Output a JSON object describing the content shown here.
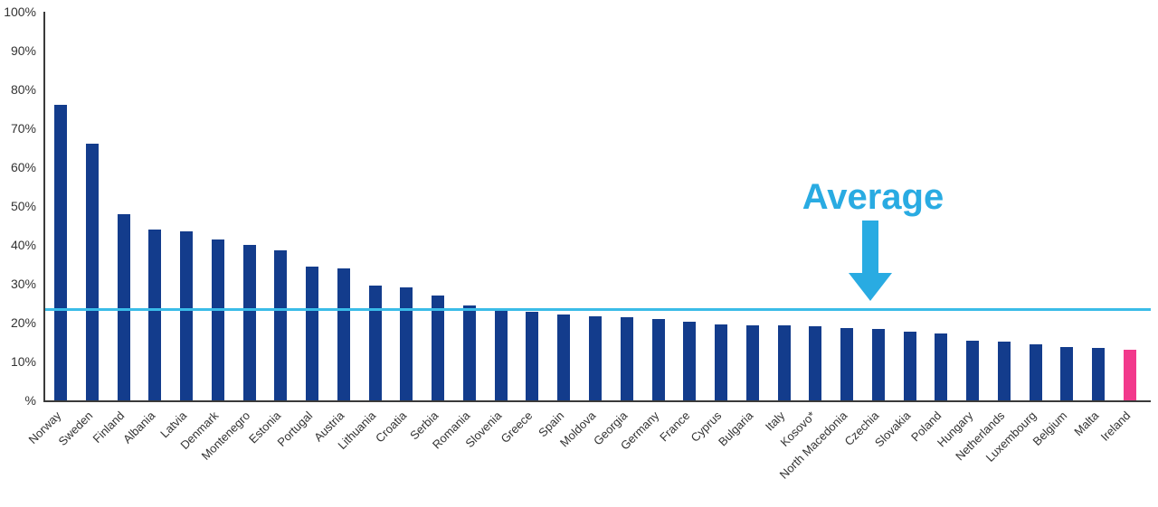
{
  "chart_data": {
    "type": "bar",
    "title": "",
    "xlabel": "",
    "ylabel": "",
    "ylim": [
      0,
      100
    ],
    "grid": false,
    "legend_position": "none",
    "y_tick_labels": [
      "100%",
      "90%",
      "80%",
      "70%",
      "60%",
      "50%",
      "40%",
      "30%",
      "20%",
      "10%",
      "%"
    ],
    "categories": [
      "Norway",
      "Sweden",
      "Finland",
      "Albania",
      "Latvia",
      "Denmark",
      "Montenegro",
      "Estonia",
      "Portugal",
      "Austria",
      "Lithuania",
      "Croatia",
      "Serbia",
      "Romania",
      "Slovenia",
      "Greece",
      "Spain",
      "Moldova",
      "Georgia",
      "Germany",
      "France",
      "Cyprus",
      "Bulgaria",
      "Italy",
      "Kosovo*",
      "North Macedonia",
      "Czechia",
      "Slovakia",
      "Poland",
      "Hungary",
      "Netherlands",
      "Luxembourg",
      "Belgium",
      "Malta",
      "Ireland"
    ],
    "values": [
      76,
      66,
      48,
      44,
      43.5,
      41.5,
      40,
      38.5,
      34.5,
      34,
      29.5,
      29,
      27,
      24.5,
      23,
      22.7,
      22,
      21.7,
      21.3,
      21,
      20.3,
      19.6,
      19.4,
      19.2,
      19,
      18.7,
      18.3,
      17.7,
      17.2,
      15.3,
      15.2,
      14.4,
      13.7,
      13.4,
      13.1
    ],
    "highlight_country": "Ireland",
    "annotation": {
      "label": "Average",
      "value": 23.3
    },
    "colors": {
      "bar": "#133c8c",
      "highlight_bar": "#f2398c",
      "average_line": "#3abce8",
      "average_label": "#29abe2",
      "axis": "#3a3a3a",
      "tick_text": "#333333"
    }
  }
}
